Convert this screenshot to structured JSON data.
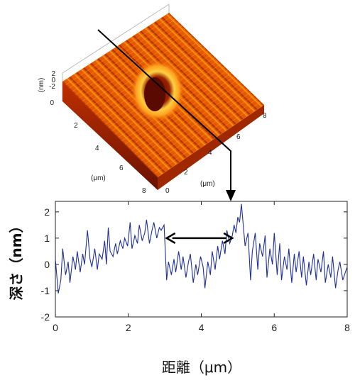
{
  "surface": {
    "z_label": "(nm)",
    "z_ticks": [
      "2",
      "0",
      "-2"
    ],
    "base_tick": "0",
    "left_axis_label": "(μm)",
    "left_ticks": [
      "2",
      "4",
      "6",
      "8"
    ],
    "right_axis_label": "(μm)",
    "right_ticks": [
      "0",
      "2",
      "4",
      "6",
      "8"
    ],
    "colors": {
      "dark": "#8a1800",
      "mid": "#e85a00",
      "light": "#ffb020",
      "highlight": "#fff0a0"
    }
  },
  "chart_data": {
    "type": "line",
    "title": "",
    "xlabel": "距離（μm）",
    "ylabel": "深さ（nm）",
    "xlim": [
      0,
      8
    ],
    "ylim": [
      -2,
      2.4
    ],
    "xticks": [
      "0",
      "2",
      "4",
      "6",
      "8"
    ],
    "yticks": [
      "-2",
      "-1",
      "0",
      "1",
      "2"
    ],
    "grid": false,
    "line_color": "#1f2f9a",
    "series": [
      {
        "name": "",
        "x": [
          0.0,
          0.08,
          0.15,
          0.2,
          0.28,
          0.35,
          0.4,
          0.48,
          0.55,
          0.6,
          0.68,
          0.75,
          0.8,
          0.88,
          0.95,
          1.0,
          1.08,
          1.15,
          1.2,
          1.28,
          1.35,
          1.4,
          1.45,
          1.5,
          1.58,
          1.65,
          1.7,
          1.78,
          1.85,
          1.9,
          1.98,
          2.05,
          2.1,
          2.18,
          2.25,
          2.3,
          2.38,
          2.45,
          2.5,
          2.58,
          2.65,
          2.7,
          2.78,
          2.85,
          2.9,
          2.98,
          3.05,
          3.1,
          3.18,
          3.25,
          3.3,
          3.38,
          3.45,
          3.5,
          3.58,
          3.65,
          3.7,
          3.78,
          3.85,
          3.9,
          3.98,
          4.05,
          4.1,
          4.18,
          4.25,
          4.3,
          4.38,
          4.45,
          4.5,
          4.58,
          4.65,
          4.7,
          4.78,
          4.85,
          4.9,
          4.95,
          5.0,
          5.05,
          5.1,
          5.15,
          5.2,
          5.28,
          5.35,
          5.4,
          5.48,
          5.55,
          5.6,
          5.68,
          5.75,
          5.8,
          5.88,
          5.95,
          6.0,
          6.08,
          6.15,
          6.2,
          6.28,
          6.35,
          6.4,
          6.48,
          6.55,
          6.6,
          6.68,
          6.75,
          6.8,
          6.88,
          6.95,
          7.0,
          7.08,
          7.15,
          7.2,
          7.28,
          7.35,
          7.4,
          7.48,
          7.55,
          7.6,
          7.68,
          7.75,
          7.8,
          7.88,
          7.95,
          8.0
        ],
        "y": [
          0.2,
          -1.1,
          -0.6,
          0.6,
          -0.4,
          0.1,
          -0.7,
          0.3,
          -0.2,
          0.5,
          -0.3,
          0.4,
          0.0,
          1.3,
          0.2,
          -0.1,
          0.6,
          -0.2,
          0.4,
          0.2,
          0.9,
          0.0,
          1.4,
          0.5,
          0.3,
          0.8,
          0.4,
          0.9,
          0.6,
          1.0,
          0.7,
          1.6,
          0.6,
          1.1,
          0.8,
          1.5,
          0.9,
          1.2,
          1.7,
          0.8,
          1.3,
          1.6,
          1.0,
          1.4,
          1.3,
          1.5,
          -0.6,
          0.1,
          -0.4,
          0.2,
          -0.3,
          0.5,
          -0.2,
          0.3,
          -0.5,
          0.1,
          0.4,
          -0.7,
          0.0,
          -0.4,
          0.3,
          -0.1,
          -0.9,
          0.1,
          -0.4,
          0.5,
          -0.2,
          0.7,
          0.2,
          0.9,
          0.4,
          1.3,
          0.8,
          1.1,
          1.5,
          1.2,
          1.8,
          1.6,
          2.3,
          1.5,
          0.7,
          1.2,
          -0.6,
          0.5,
          1.2,
          -0.2,
          0.8,
          0.3,
          1.1,
          -0.5,
          0.6,
          0.0,
          1.2,
          -0.4,
          0.8,
          -0.6,
          0.3,
          -0.2,
          0.6,
          -0.7,
          0.4,
          -0.3,
          0.5,
          -0.5,
          0.3,
          -0.8,
          0.1,
          -0.4,
          0.4,
          -0.6,
          0.2,
          -0.3,
          0.5,
          -0.7,
          0.0,
          -0.5,
          0.3,
          -0.9,
          -0.2,
          0.1,
          -0.6,
          -0.3,
          -0.1
        ]
      }
    ],
    "annotations": [
      {
        "type": "double_arrow",
        "x_start": 3.05,
        "x_end": 4.85,
        "y": 1.0
      },
      {
        "type": "section_arrow",
        "x": 4.9,
        "y": 2.3
      }
    ]
  }
}
